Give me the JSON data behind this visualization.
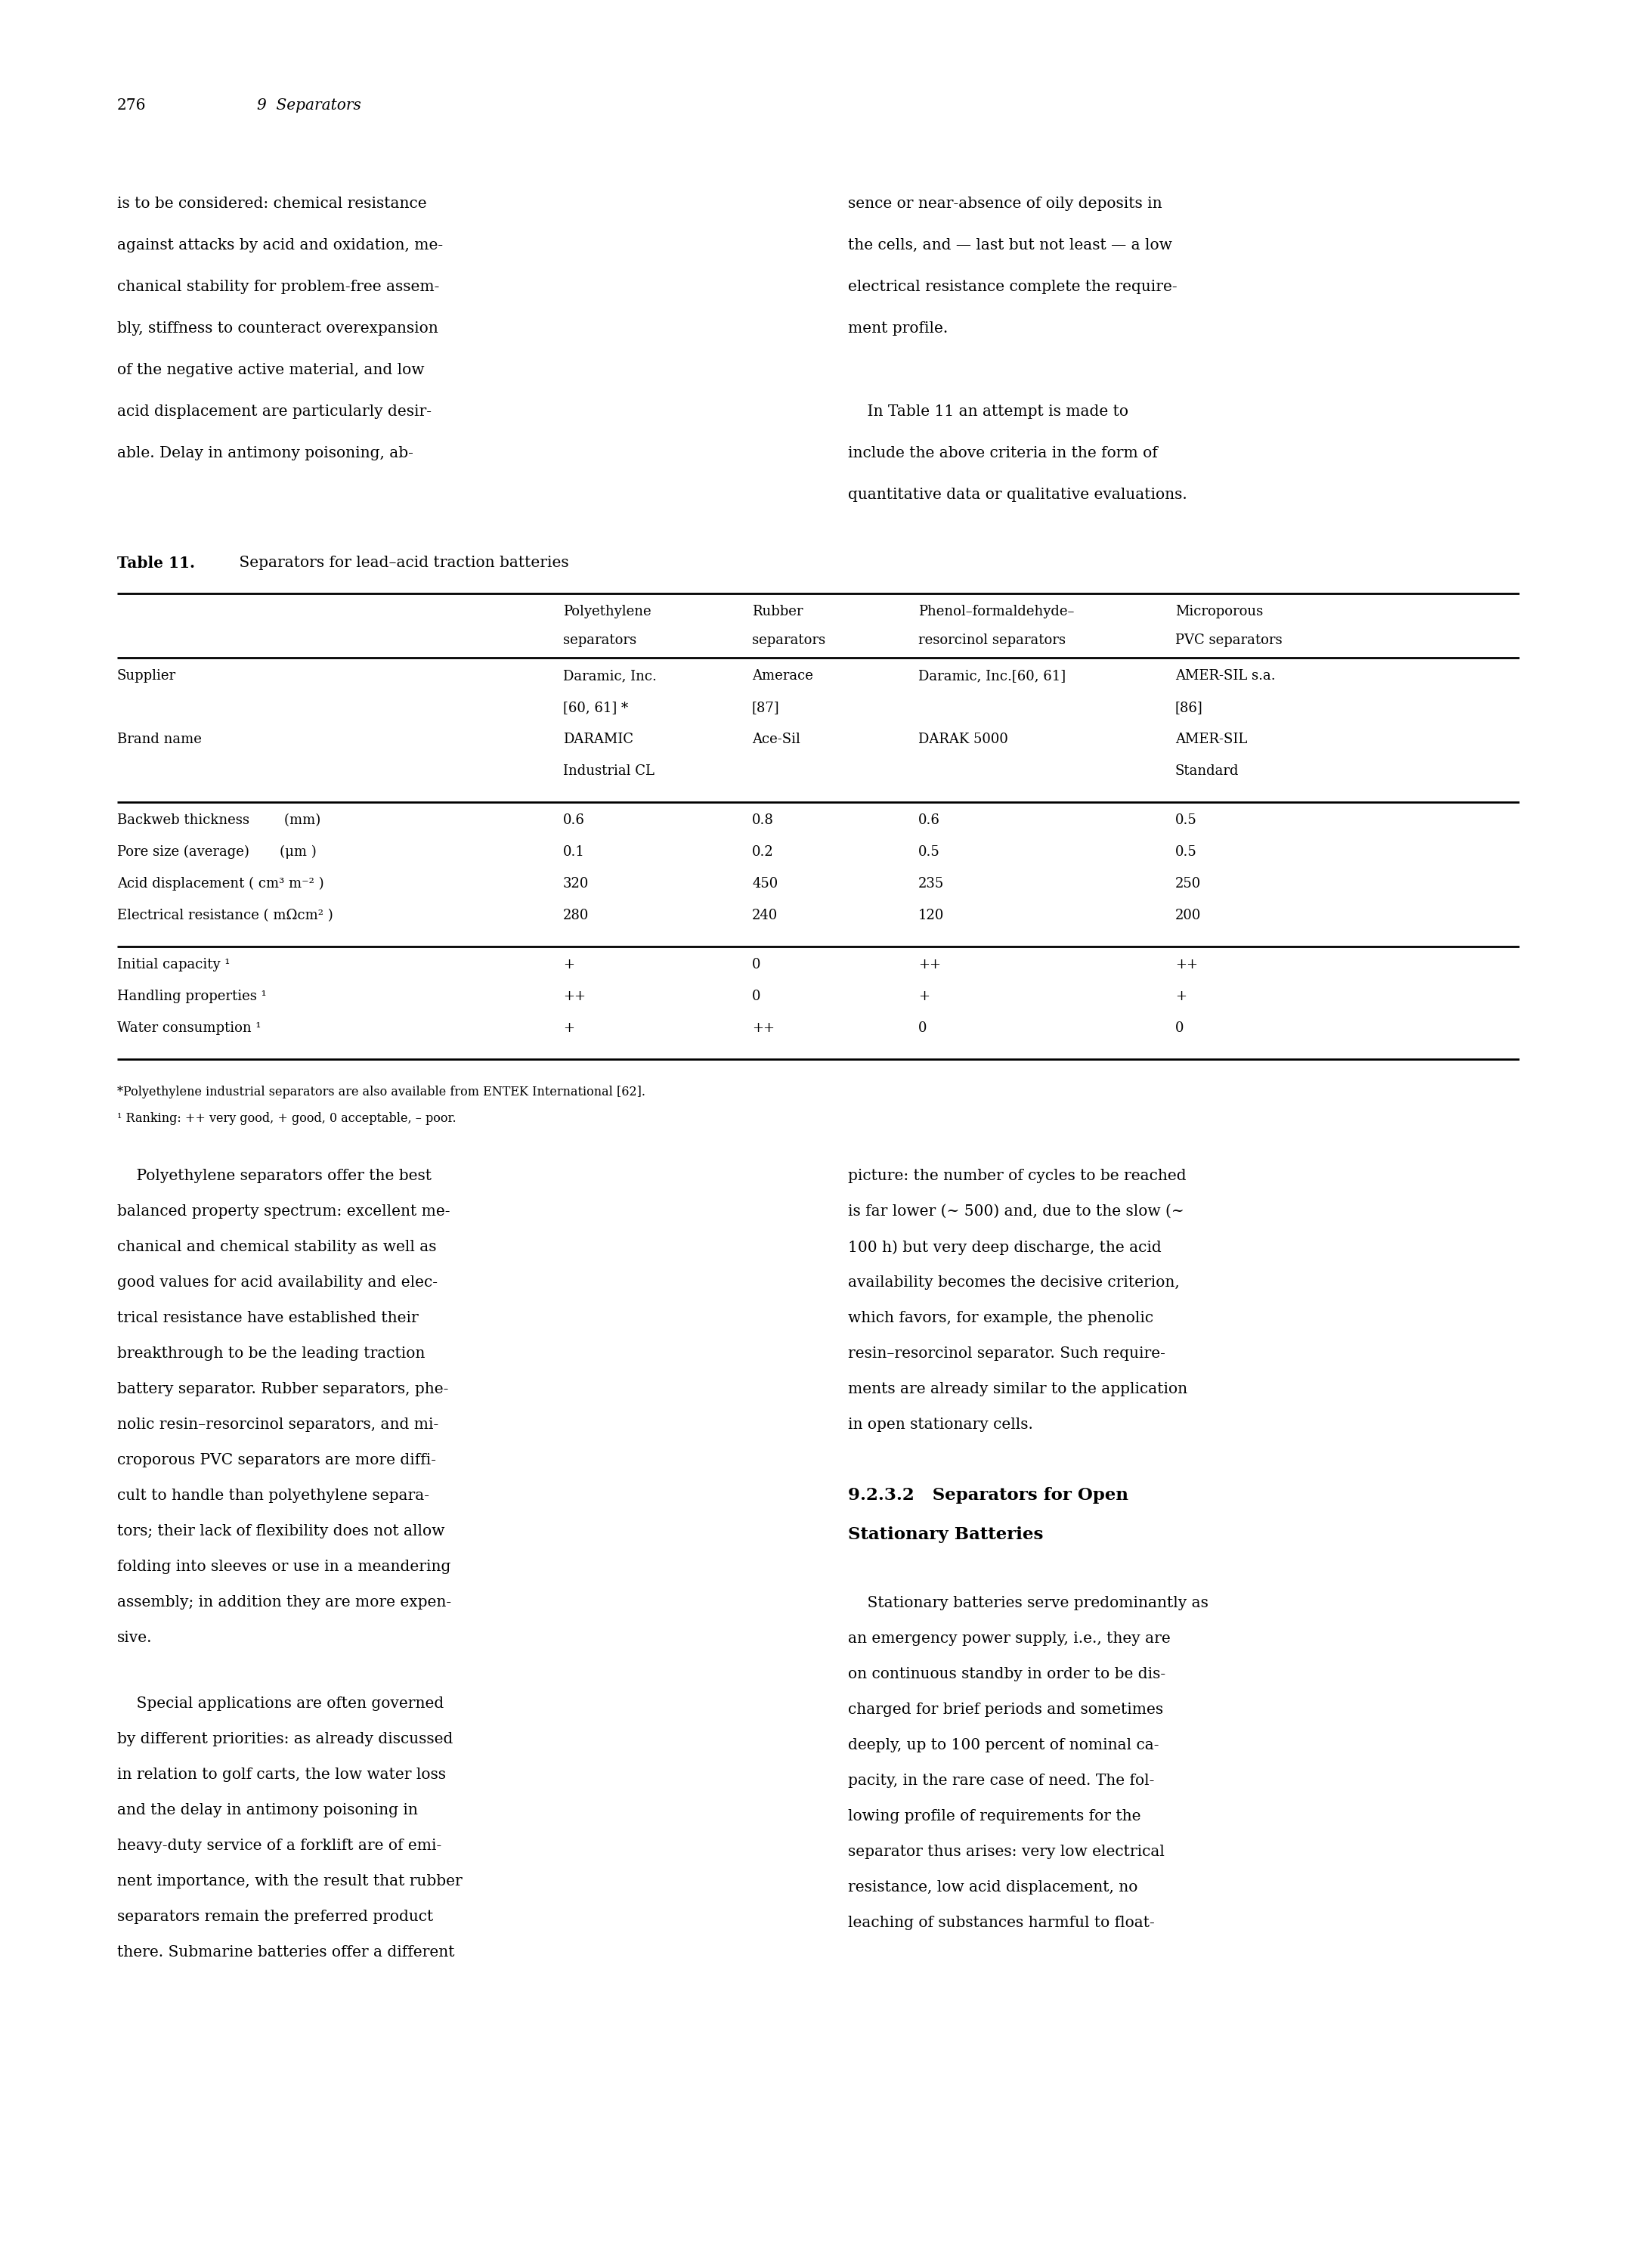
{
  "page_number": "276",
  "chapter_header": "9  Separators",
  "background_color": "#ffffff",
  "left_col_intro": [
    "is to be considered: chemical resistance",
    "against attacks by acid and oxidation, me-",
    "chanical stability for problem-free assem-",
    "bly, stiffness to counteract overexpansion",
    "of the negative active material, and low",
    "acid displacement are particularly desir-",
    "able. Delay in antimony poisoning, ab-"
  ],
  "right_col_intro": [
    "sence or near-absence of oily deposits in",
    "the cells, and — last but not least — a low",
    "electrical resistance complete the require-",
    "ment profile.",
    "",
    "    In Table 11 an attempt is made to",
    "include the above criteria in the form of",
    "quantitative data or qualitative evaluations."
  ],
  "table_title_bold": "Table 11.",
  "table_title_normal": " Separators for lead–acid traction batteries",
  "col_h1": [
    "",
    "Polyethylene",
    "Rubber",
    "Phenol–formaldehyde–",
    "Microporous"
  ],
  "col_h2": [
    "",
    "separators",
    "separators",
    "resorcinol separators",
    "PVC separators"
  ],
  "table_supplier": [
    [
      "Supplier",
      "Daramic, Inc.",
      "Amerace",
      "Daramic, Inc.[60, 61]",
      "AMER-SIL s.a."
    ],
    [
      "",
      "[60, 61] *",
      "[87]",
      "",
      "[86]"
    ],
    [
      "Brand name",
      "DARAMIC",
      "Ace-Sil",
      "DARAK 5000",
      "AMER-SIL"
    ],
    [
      "",
      "Industrial CL",
      "",
      "",
      "Standard"
    ]
  ],
  "table_meas": [
    [
      "Backweb thickness        (mm)",
      "0.6",
      "0.8",
      "0.6",
      "0.5"
    ],
    [
      "Pore size (average)       (μm )",
      "0.1",
      "0.2",
      "0.5",
      "0.5"
    ],
    [
      "Acid displacement ( cm³ m⁻² )",
      "320",
      "450",
      "235",
      "250"
    ],
    [
      "Electrical resistance ( mΩcm² )",
      "280",
      "240",
      "120",
      "200"
    ]
  ],
  "table_qual": [
    [
      "Initial capacity ¹",
      "+",
      "0",
      "++",
      "++"
    ],
    [
      "Handling properties ¹",
      "++",
      "0",
      "+",
      "+"
    ],
    [
      "Water consumption ¹",
      "+",
      "++",
      "0",
      "0"
    ]
  ],
  "footnote1": "*Polyethylene industrial separators are also available from ENTEK International [62].",
  "footnote2": "¹ Ranking: ++ very good, + good, 0 acceptable, – poor.",
  "body_left1": [
    "    Polyethylene separators offer the best",
    "balanced property spectrum: excellent me-",
    "chanical and chemical stability as well as",
    "good values for acid availability and elec-",
    "trical resistance have established their",
    "breakthrough to be the leading traction",
    "battery separator. Rubber separators, phe-",
    "nolic resin–resorcinol separators, and mi-",
    "croporous PVC separators are more diffi-",
    "cult to handle than polyethylene separa-",
    "tors; their lack of flexibility does not allow",
    "folding into sleeves or use in a meandering",
    "assembly; in addition they are more expen-",
    "sive."
  ],
  "body_right1": [
    "picture: the number of cycles to be reached",
    "is far lower (~ 500) and, due to the slow (~",
    "100 h) but very deep discharge, the acid",
    "availability becomes the decisive criterion,",
    "which favors, for example, the phenolic",
    "resin–resorcinol separator. Such require-",
    "ments are already similar to the application",
    "in open stationary cells."
  ],
  "section_h1": "9.2.3.2   Separators for Open",
  "section_h2": "Stationary Batteries",
  "body_left2": [
    "    Special applications are often governed",
    "by different priorities: as already discussed",
    "in relation to golf carts, the low water loss",
    "and the delay in antimony poisoning in",
    "heavy-duty service of a forklift are of emi-",
    "nent importance, with the result that rubber",
    "separators remain the preferred product",
    "there. Submarine batteries offer a different"
  ],
  "body_right2": [
    "    Stationary batteries serve predominantly as",
    "an emergency power supply, i.e., they are",
    "on continuous standby in order to be dis-",
    "charged for brief periods and sometimes",
    "deeply, up to 100 percent of nominal ca-",
    "pacity, in the rare case of need. The fol-",
    "lowing profile of requirements for the",
    "separator thus arises: very low electrical",
    "resistance, low acid displacement, no",
    "leaching of substances harmful to float-"
  ]
}
